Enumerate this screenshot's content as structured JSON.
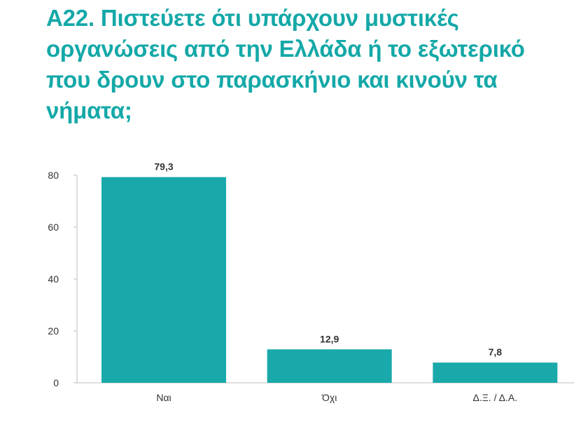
{
  "chart_data": {
    "type": "bar",
    "title": "Α22. Πιστεύετε ότι υπάρχουν μυστικές οργανώσεις από την Ελλάδα ή το εξωτερικό που δρουν στο παρασκήνιο και κινούν τα νήματα;",
    "categories": [
      "Ναι",
      "Όχι",
      "Δ.Ξ. / Δ.Α."
    ],
    "values": [
      79.3,
      12.9,
      7.8
    ],
    "value_labels": [
      "79,3",
      "12,9",
      "7,8"
    ],
    "ylim": [
      0,
      80
    ],
    "yticks": [
      0,
      20,
      40,
      60,
      80
    ],
    "grid": false,
    "legend": "none",
    "bar_color": "#1aa9aa",
    "title_color": "#15a8a8",
    "xlabel": "",
    "ylabel": ""
  }
}
